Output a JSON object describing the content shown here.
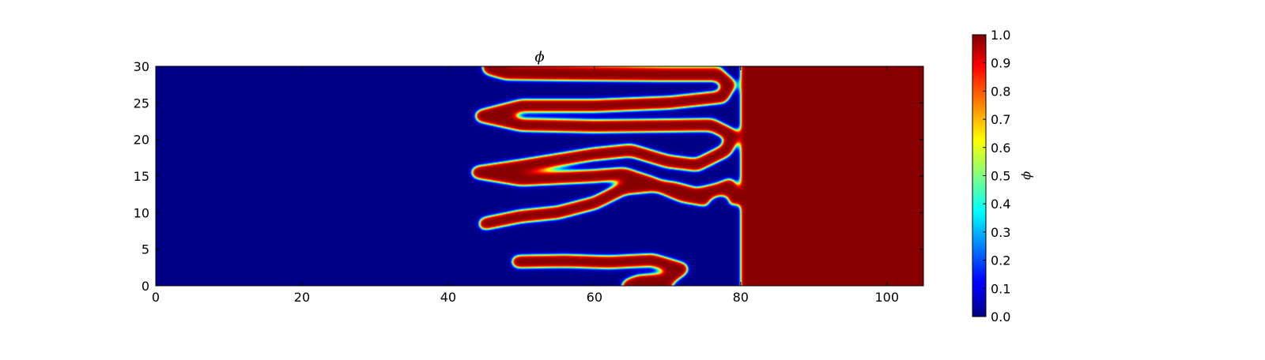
{
  "chart_data": {
    "type": "heatmap",
    "title": "ϕ",
    "xlabel": "",
    "ylabel": "",
    "xlim": [
      0,
      105
    ],
    "ylim": [
      0,
      30
    ],
    "x_ticks": [
      0,
      20,
      40,
      60,
      80,
      100
    ],
    "y_ticks": [
      0,
      5,
      10,
      15,
      20,
      25,
      30
    ],
    "x_tick_labels": [
      "0",
      "20",
      "40",
      "60",
      "80",
      "100"
    ],
    "y_tick_labels": [
      "0",
      "5",
      "10",
      "15",
      "20",
      "25",
      "30"
    ],
    "colormap": "jet",
    "colorbar": {
      "label": "ϕ",
      "range": [
        0.0,
        1.0
      ],
      "ticks": [
        0.0,
        0.1,
        0.2,
        0.3,
        0.4,
        0.5,
        0.6,
        0.7,
        0.8,
        0.9,
        1.0
      ],
      "tick_labels": [
        "0.0",
        "0.1",
        "0.2",
        "0.3",
        "0.4",
        "0.5",
        "0.6",
        "0.7",
        "0.8",
        "0.9",
        "1.0"
      ]
    },
    "field": {
      "low_value": 0.0,
      "high_value": 1.0,
      "low_region_x": [
        0,
        46
      ],
      "high_region_x": [
        80,
        105
      ],
      "fingers": [
        {
          "value": 1.0,
          "points": [
            [
              45.5,
              29.7
            ],
            [
              48,
              29
            ],
            [
              58,
              28.9
            ],
            [
              70,
              28.8
            ],
            [
              77,
              28.8
            ],
            [
              78.5,
              27.5
            ],
            [
              77.5,
              25.8
            ],
            [
              70,
              25
            ],
            [
              60,
              24.6
            ],
            [
              50,
              24.6
            ],
            [
              44.5,
              23.2
            ],
            [
              50,
              22
            ],
            [
              60,
              21.8
            ],
            [
              70,
              21.9
            ],
            [
              76,
              22
            ],
            [
              79,
              20.5
            ],
            [
              78,
              18.5
            ],
            [
              74,
              16.5
            ],
            [
              70,
              17
            ],
            [
              65,
              18.5
            ],
            [
              60,
              18
            ],
            [
              50,
              16.4
            ],
            [
              44,
              15.5
            ],
            [
              50,
              14.5
            ],
            [
              60,
              15
            ],
            [
              64,
              15.3
            ],
            [
              68,
              14
            ],
            [
              72,
              12.3
            ],
            [
              76.5,
              11.5
            ],
            [
              79.5,
              12
            ],
            [
              78.5,
              13.8
            ],
            [
              77,
              13.2
            ],
            [
              74,
              12.5
            ],
            [
              71,
              13.3
            ],
            [
              68,
              13.7
            ],
            [
              64,
              13.3
            ],
            [
              60,
              11.3
            ],
            [
              55,
              10
            ],
            [
              50,
              9.5
            ],
            [
              45,
              8.5
            ]
          ]
        },
        {
          "value": 1.0,
          "points": [
            [
              49.5,
              3.3
            ],
            [
              56,
              3.4
            ],
            [
              62,
              3.2
            ],
            [
              68,
              3.5
            ],
            [
              72,
              2.3
            ],
            [
              70,
              0.9
            ],
            [
              66,
              0.6
            ],
            [
              64.5,
              0
            ]
          ]
        }
      ]
    }
  }
}
